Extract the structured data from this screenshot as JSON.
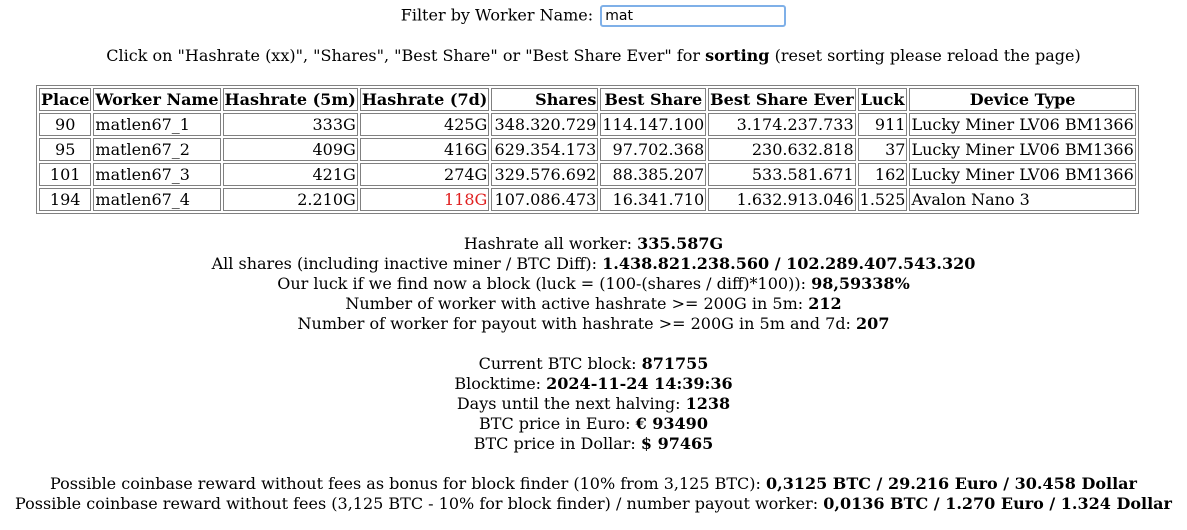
{
  "filter": {
    "label": "Filter by Worker Name:",
    "value": "mat",
    "focus_color": "#7fb0e8"
  },
  "sort_hint": {
    "prefix": "Click on \"Hashrate (xx)\", \"Shares\", \"Best Share\" or \"Best Share Ever\" for",
    "bold": "sorting",
    "suffix": "(reset sorting please reload the page)"
  },
  "table": {
    "headers": [
      "Place",
      "Worker Name",
      "Hashrate (5m)",
      "Hashrate (7d)",
      "Shares",
      "Best Share",
      "Best Share Ever",
      "Luck",
      "Device Type"
    ],
    "rows": [
      {
        "place": "90",
        "worker": "matlen67_1",
        "hr5m": "333G",
        "hr7d": "425G",
        "shares": "348.320.729",
        "best": "114.147.100",
        "best_ever": "3.174.237.733",
        "luck": "911",
        "device": "Lucky Miner LV06 BM1366"
      },
      {
        "place": "95",
        "worker": "matlen67_2",
        "hr5m": "409G",
        "hr7d": "416G",
        "shares": "629.354.173",
        "best": "97.702.368",
        "best_ever": "230.632.818",
        "luck": "37",
        "device": "Lucky Miner LV06 BM1366"
      },
      {
        "place": "101",
        "worker": "matlen67_3",
        "hr5m": "421G",
        "hr7d": "274G",
        "shares": "329.576.692",
        "best": "88.385.207",
        "best_ever": "533.581.671",
        "luck": "162",
        "device": "Lucky Miner LV06 BM1366"
      },
      {
        "place": "194",
        "worker": "matlen67_4",
        "hr5m": "2.210G",
        "hr7d": "118G",
        "shares": "107.086.473",
        "best": "16.341.710",
        "best_ever": "1.632.913.046",
        "luck": "1.525",
        "device": "Avalon Nano 3"
      }
    ],
    "warning_color": "#e02020"
  },
  "stats": {
    "hashrate_all": {
      "label": "Hashrate all worker:",
      "value": "335.587G"
    },
    "all_shares": {
      "label": "All shares (including inactive miner / BTC Diff):",
      "value": "1.438.821.238.560 / 102.289.407.543.320"
    },
    "luck": {
      "label": "Our luck if we find now a block (luck = (100-(shares / diff)*100)):",
      "value": "98,59338%"
    },
    "active_workers": {
      "label": "Number of worker with active hashrate >= 200G in 5m:",
      "value": "212"
    },
    "payout_workers": {
      "label": "Number of worker for payout with hashrate >= 200G in 5m and 7d:",
      "value": "207"
    },
    "btc_block": {
      "label": "Current BTC block:",
      "value": "871755"
    },
    "blocktime": {
      "label": "Blocktime:",
      "value": "2024-11-24 14:39:36"
    },
    "halving": {
      "label": "Days until the next halving:",
      "value": "1238"
    },
    "price_euro": {
      "label": "BTC price in Euro:",
      "value": "€ 93490"
    },
    "price_dollar": {
      "label": "BTC price in Dollar:",
      "value": "$ 97465"
    },
    "bonus_reward": {
      "label": "Possible coinbase reward without fees as bonus for block finder (10% from 3,125 BTC):",
      "value": "0,3125 BTC / 29.216 Euro / 30.458 Dollar"
    },
    "payout_reward": {
      "label": "Possible coinbase reward without fees (3,125 BTC - 10% for block finder) / number payout worker:",
      "value": "0,0136 BTC / 1.270 Euro / 1.324 Dollar"
    }
  }
}
